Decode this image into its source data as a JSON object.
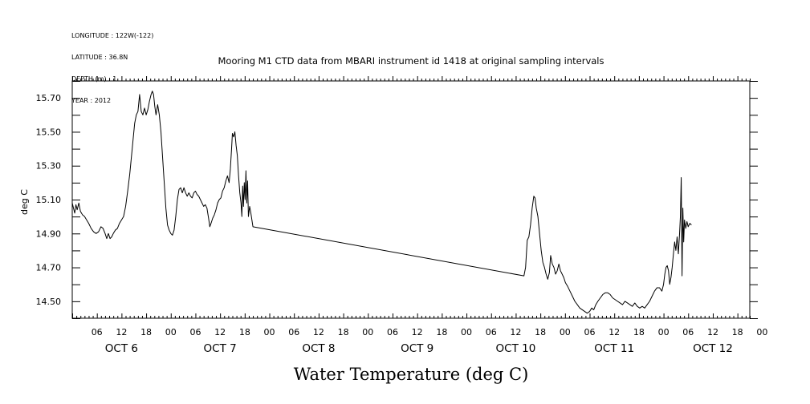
{
  "header": {
    "longitude": "LONGITUDE : 122W(-122)",
    "latitude": "LATITUDE : 36.8N",
    "depth": "DEPTH (m) : 1",
    "year": "YEAR : 2012"
  },
  "chart_data": {
    "type": "line",
    "title": "Mooring M1 CTD data from MBARI instrument id 1418 at original sampling intervals",
    "xlabel": "Water Temperature (deg C)",
    "ylabel": "deg C",
    "xlim_hours": [
      0,
      165
    ],
    "ylim": [
      14.4,
      15.8
    ],
    "yticks": [
      14.5,
      14.7,
      14.9,
      15.1,
      15.3,
      15.5,
      15.7
    ],
    "ytick_labels": [
      "14.50",
      "14.70",
      "14.90",
      "15.10",
      "15.30",
      "15.50",
      "15.70"
    ],
    "x_hour_ticks": [
      {
        "h": 6,
        "label": "06"
      },
      {
        "h": 12,
        "label": "12"
      },
      {
        "h": 18,
        "label": "18"
      },
      {
        "h": 24,
        "label": "00"
      },
      {
        "h": 30,
        "label": "06"
      },
      {
        "h": 36,
        "label": "12"
      },
      {
        "h": 42,
        "label": "18"
      },
      {
        "h": 48,
        "label": "00"
      },
      {
        "h": 54,
        "label": "06"
      },
      {
        "h": 60,
        "label": "12"
      },
      {
        "h": 66,
        "label": "18"
      },
      {
        "h": 72,
        "label": "00"
      },
      {
        "h": 78,
        "label": "06"
      },
      {
        "h": 84,
        "label": "12"
      },
      {
        "h": 90,
        "label": "18"
      },
      {
        "h": 96,
        "label": "00"
      },
      {
        "h": 102,
        "label": "06"
      },
      {
        "h": 108,
        "label": "12"
      },
      {
        "h": 114,
        "label": "18"
      },
      {
        "h": 120,
        "label": "00"
      },
      {
        "h": 126,
        "label": "06"
      },
      {
        "h": 132,
        "label": "12"
      },
      {
        "h": 138,
        "label": "18"
      },
      {
        "h": 144,
        "label": "00"
      },
      {
        "h": 150,
        "label": "06"
      },
      {
        "h": 156,
        "label": "12"
      },
      {
        "h": 162,
        "label": "18"
      },
      {
        "h": 168,
        "label": "00"
      }
    ],
    "day_labels": [
      {
        "h": 12,
        "label": "OCT  6"
      },
      {
        "h": 36,
        "label": "OCT  7"
      },
      {
        "h": 60,
        "label": "OCT  8"
      },
      {
        "h": 84,
        "label": "OCT  9"
      },
      {
        "h": 108,
        "label": "OCT 10"
      },
      {
        "h": 132,
        "label": "OCT 11"
      },
      {
        "h": 156,
        "label": "OCT 12"
      }
    ],
    "series": [
      {
        "color": "#000000",
        "points": [
          [
            0.0,
            15.08
          ],
          [
            0.3,
            15.05
          ],
          [
            0.6,
            15.02
          ],
          [
            0.9,
            15.07
          ],
          [
            1.2,
            15.04
          ],
          [
            1.6,
            15.08
          ],
          [
            2.0,
            15.03
          ],
          [
            2.5,
            15.01
          ],
          [
            3.0,
            15.0
          ],
          [
            3.5,
            14.98
          ],
          [
            4.0,
            14.96
          ],
          [
            4.6,
            14.93
          ],
          [
            5.2,
            14.91
          ],
          [
            5.8,
            14.9
          ],
          [
            6.4,
            14.91
          ],
          [
            7.0,
            14.94
          ],
          [
            7.5,
            14.93
          ],
          [
            8.0,
            14.9
          ],
          [
            8.4,
            14.87
          ],
          [
            8.8,
            14.9
          ],
          [
            9.2,
            14.87
          ],
          [
            9.6,
            14.88
          ],
          [
            10.0,
            14.9
          ],
          [
            10.5,
            14.92
          ],
          [
            11.0,
            14.93
          ],
          [
            11.5,
            14.96
          ],
          [
            12.0,
            14.98
          ],
          [
            12.5,
            15.0
          ],
          [
            13.0,
            15.06
          ],
          [
            13.5,
            15.15
          ],
          [
            14.0,
            15.25
          ],
          [
            14.4,
            15.35
          ],
          [
            14.8,
            15.45
          ],
          [
            15.2,
            15.55
          ],
          [
            15.6,
            15.6
          ],
          [
            16.0,
            15.62
          ],
          [
            16.4,
            15.72
          ],
          [
            16.8,
            15.62
          ],
          [
            17.2,
            15.6
          ],
          [
            17.6,
            15.64
          ],
          [
            18.0,
            15.6
          ],
          [
            18.4,
            15.63
          ],
          [
            18.8,
            15.68
          ],
          [
            19.2,
            15.72
          ],
          [
            19.5,
            15.74
          ],
          [
            19.8,
            15.72
          ],
          [
            20.1,
            15.65
          ],
          [
            20.4,
            15.6
          ],
          [
            20.8,
            15.66
          ],
          [
            21.2,
            15.6
          ],
          [
            21.6,
            15.5
          ],
          [
            22.0,
            15.35
          ],
          [
            22.4,
            15.2
          ],
          [
            22.8,
            15.05
          ],
          [
            23.2,
            14.95
          ],
          [
            23.6,
            14.92
          ],
          [
            24.0,
            14.9
          ],
          [
            24.4,
            14.89
          ],
          [
            24.8,
            14.92
          ],
          [
            25.2,
            15.0
          ],
          [
            25.6,
            15.1
          ],
          [
            26.0,
            15.16
          ],
          [
            26.4,
            15.17
          ],
          [
            26.8,
            15.14
          ],
          [
            27.2,
            15.17
          ],
          [
            27.6,
            15.14
          ],
          [
            28.0,
            15.12
          ],
          [
            28.4,
            15.14
          ],
          [
            28.8,
            15.12
          ],
          [
            29.2,
            15.11
          ],
          [
            29.6,
            15.14
          ],
          [
            30.0,
            15.15
          ],
          [
            30.4,
            15.13
          ],
          [
            30.8,
            15.12
          ],
          [
            31.2,
            15.1
          ],
          [
            31.6,
            15.08
          ],
          [
            32.0,
            15.06
          ],
          [
            32.4,
            15.07
          ],
          [
            32.8,
            15.05
          ],
          [
            33.2,
            14.99
          ],
          [
            33.5,
            14.94
          ],
          [
            33.8,
            14.96
          ],
          [
            34.2,
            14.99
          ],
          [
            34.6,
            15.01
          ],
          [
            35.0,
            15.04
          ],
          [
            35.4,
            15.08
          ],
          [
            35.8,
            15.1
          ],
          [
            36.2,
            15.11
          ],
          [
            36.6,
            15.15
          ],
          [
            37.0,
            15.17
          ],
          [
            37.4,
            15.21
          ],
          [
            37.8,
            15.24
          ],
          [
            38.2,
            15.2
          ],
          [
            38.5,
            15.28
          ],
          [
            38.8,
            15.4
          ],
          [
            39.0,
            15.49
          ],
          [
            39.3,
            15.47
          ],
          [
            39.6,
            15.5
          ],
          [
            39.9,
            15.42
          ],
          [
            40.2,
            15.36
          ],
          [
            40.5,
            15.24
          ],
          [
            40.8,
            15.14
          ],
          [
            41.1,
            15.08
          ],
          [
            41.3,
            15.0
          ],
          [
            41.5,
            15.18
          ],
          [
            41.7,
            15.06
          ],
          [
            41.9,
            15.2
          ],
          [
            42.1,
            15.1
          ],
          [
            42.3,
            15.27
          ],
          [
            42.5,
            15.08
          ],
          [
            42.7,
            15.21
          ],
          [
            42.9,
            15.0
          ],
          [
            43.2,
            15.06
          ],
          [
            43.5,
            15.02
          ],
          [
            44.0,
            14.94
          ],
          [
            110.0,
            14.65
          ],
          [
            110.4,
            14.7
          ],
          [
            110.8,
            14.86
          ],
          [
            111.2,
            14.88
          ],
          [
            111.6,
            14.95
          ],
          [
            112.0,
            15.05
          ],
          [
            112.4,
            15.12
          ],
          [
            112.7,
            15.11
          ],
          [
            113.0,
            15.05
          ],
          [
            113.4,
            15.0
          ],
          [
            113.8,
            14.9
          ],
          [
            114.2,
            14.8
          ],
          [
            114.6,
            14.73
          ],
          [
            115.0,
            14.7
          ],
          [
            115.4,
            14.66
          ],
          [
            115.8,
            14.63
          ],
          [
            116.2,
            14.67
          ],
          [
            116.5,
            14.77
          ],
          [
            116.9,
            14.72
          ],
          [
            117.3,
            14.7
          ],
          [
            117.7,
            14.66
          ],
          [
            118.1,
            14.68
          ],
          [
            118.5,
            14.72
          ],
          [
            118.9,
            14.68
          ],
          [
            119.3,
            14.66
          ],
          [
            119.7,
            14.64
          ],
          [
            120.1,
            14.61
          ],
          [
            120.6,
            14.59
          ],
          [
            121.2,
            14.56
          ],
          [
            121.8,
            14.53
          ],
          [
            122.4,
            14.5
          ],
          [
            123.0,
            14.48
          ],
          [
            123.6,
            14.46
          ],
          [
            124.2,
            14.45
          ],
          [
            124.8,
            14.44
          ],
          [
            125.4,
            14.43
          ],
          [
            126.0,
            14.44
          ],
          [
            126.5,
            14.46
          ],
          [
            127.0,
            14.45
          ],
          [
            127.5,
            14.48
          ],
          [
            128.0,
            14.5
          ],
          [
            128.6,
            14.52
          ],
          [
            129.2,
            14.54
          ],
          [
            129.8,
            14.55
          ],
          [
            130.4,
            14.55
          ],
          [
            131.0,
            14.54
          ],
          [
            131.6,
            14.52
          ],
          [
            132.2,
            14.51
          ],
          [
            132.8,
            14.5
          ],
          [
            133.4,
            14.49
          ],
          [
            134.0,
            14.48
          ],
          [
            134.6,
            14.5
          ],
          [
            135.2,
            14.49
          ],
          [
            135.8,
            14.48
          ],
          [
            136.4,
            14.47
          ],
          [
            137.0,
            14.49
          ],
          [
            137.6,
            14.47
          ],
          [
            138.2,
            14.46
          ],
          [
            138.8,
            14.47
          ],
          [
            139.4,
            14.46
          ],
          [
            140.0,
            14.48
          ],
          [
            140.6,
            14.5
          ],
          [
            141.2,
            14.53
          ],
          [
            141.8,
            14.56
          ],
          [
            142.4,
            14.58
          ],
          [
            143.0,
            14.58
          ],
          [
            143.6,
            14.56
          ],
          [
            144.0,
            14.6
          ],
          [
            144.3,
            14.66
          ],
          [
            144.6,
            14.7
          ],
          [
            144.9,
            14.71
          ],
          [
            145.2,
            14.68
          ],
          [
            145.5,
            14.6
          ],
          [
            145.8,
            14.64
          ],
          [
            146.1,
            14.7
          ],
          [
            146.4,
            14.78
          ],
          [
            146.7,
            14.85
          ],
          [
            147.0,
            14.8
          ],
          [
            147.3,
            14.88
          ],
          [
            147.6,
            14.78
          ],
          [
            147.9,
            14.9
          ],
          [
            148.1,
            15.0
          ],
          [
            148.3,
            15.23
          ],
          [
            148.5,
            14.65
          ],
          [
            148.7,
            15.05
          ],
          [
            148.9,
            14.85
          ],
          [
            149.1,
            14.98
          ],
          [
            149.4,
            14.93
          ],
          [
            149.7,
            14.97
          ],
          [
            150.0,
            14.94
          ],
          [
            150.4,
            14.96
          ],
          [
            150.8,
            14.95
          ]
        ]
      }
    ]
  }
}
